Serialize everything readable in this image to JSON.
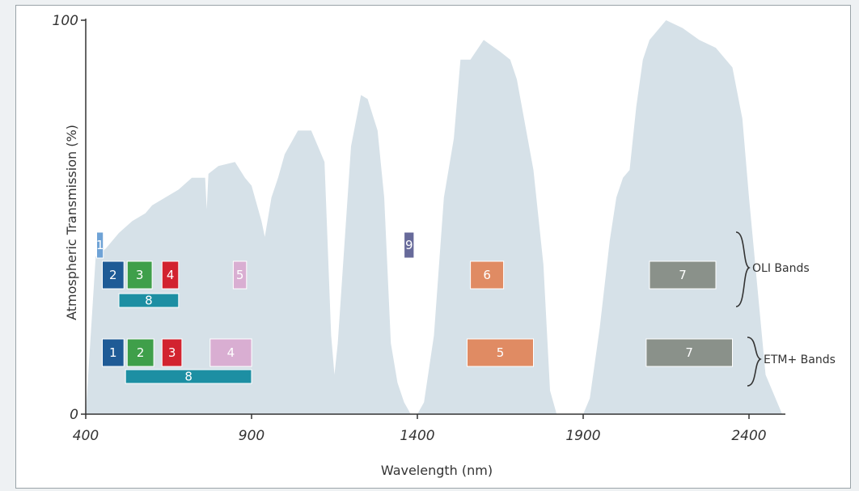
{
  "chart_data": {
    "type": "area",
    "xlabel": "Wavelength (nm)",
    "ylabel": "Atmospheric Transmission (%)",
    "xlim": [
      400,
      2500
    ],
    "ylim": [
      0,
      100
    ],
    "x_ticks": [
      400,
      900,
      1400,
      1900,
      2400
    ],
    "y_ticks": [
      0,
      100
    ],
    "fill_color": "#d6e1e8",
    "transmission": {
      "x": [
        400,
        430,
        460,
        500,
        540,
        580,
        600,
        640,
        680,
        720,
        760,
        765,
        770,
        800,
        850,
        880,
        900,
        930,
        940,
        960,
        980,
        1000,
        1040,
        1080,
        1100,
        1120,
        1140,
        1150,
        1160,
        1200,
        1230,
        1250,
        1280,
        1300,
        1320,
        1340,
        1360,
        1380,
        1400,
        1420,
        1450,
        1480,
        1510,
        1530,
        1550,
        1560,
        1600,
        1650,
        1680,
        1700,
        1750,
        1780,
        1800,
        1820,
        1850,
        1880,
        1900,
        1920,
        1950,
        1980,
        2000,
        2020,
        2040,
        2060,
        2080,
        2100,
        2150,
        2200,
        2250,
        2300,
        2350,
        2380,
        2400,
        2450,
        2500
      ],
      "y": [
        0,
        40,
        42,
        46,
        49,
        51,
        53,
        55,
        57,
        60,
        60,
        52,
        61,
        63,
        64,
        60,
        58,
        49,
        45,
        55,
        60,
        66,
        72,
        72,
        68,
        64,
        20,
        10,
        18,
        68,
        81,
        80,
        72,
        55,
        18,
        8,
        3,
        0,
        0,
        3,
        20,
        55,
        70,
        90,
        90,
        90,
        95,
        92,
        90,
        85,
        62,
        38,
        6,
        0,
        0,
        0,
        0,
        4,
        22,
        44,
        55,
        60,
        62,
        78,
        90,
        95,
        100,
        98,
        95,
        93,
        88,
        75,
        55,
        10,
        0
      ]
    },
    "band_groups": [
      {
        "label": "OLI Bands",
        "bands": [
          {
            "label": "1",
            "start": 433,
            "end": 453,
            "color": "#6fa3d6"
          },
          {
            "label": "2",
            "start": 450,
            "end": 515,
            "color": "#1f5b96"
          },
          {
            "label": "3",
            "start": 525,
            "end": 600,
            "color": "#3f9f4a"
          },
          {
            "label": "4",
            "start": 630,
            "end": 680,
            "color": "#d2232f"
          },
          {
            "label": "5",
            "start": 845,
            "end": 885,
            "color": "#d9aed2"
          },
          {
            "label": "6",
            "start": 1560,
            "end": 1660,
            "color": "#e08b63"
          },
          {
            "label": "7",
            "start": 2100,
            "end": 2300,
            "color": "#8a918a"
          },
          {
            "label": "8",
            "start": 500,
            "end": 680,
            "color": "#1d8fa3"
          },
          {
            "label": "9",
            "start": 1360,
            "end": 1390,
            "color": "#676a9a"
          }
        ]
      },
      {
        "label": "ETM+ Bands",
        "bands": [
          {
            "label": "1",
            "start": 450,
            "end": 515,
            "color": "#1f5b96"
          },
          {
            "label": "2",
            "start": 525,
            "end": 605,
            "color": "#3f9f4a"
          },
          {
            "label": "3",
            "start": 630,
            "end": 690,
            "color": "#d2232f"
          },
          {
            "label": "4",
            "start": 775,
            "end": 900,
            "color": "#d9aed2"
          },
          {
            "label": "5",
            "start": 1550,
            "end": 1750,
            "color": "#e08b63"
          },
          {
            "label": "7",
            "start": 2090,
            "end": 2350,
            "color": "#8a918a"
          },
          {
            "label": "8",
            "start": 520,
            "end": 900,
            "color": "#1d8fa3"
          }
        ]
      }
    ]
  }
}
